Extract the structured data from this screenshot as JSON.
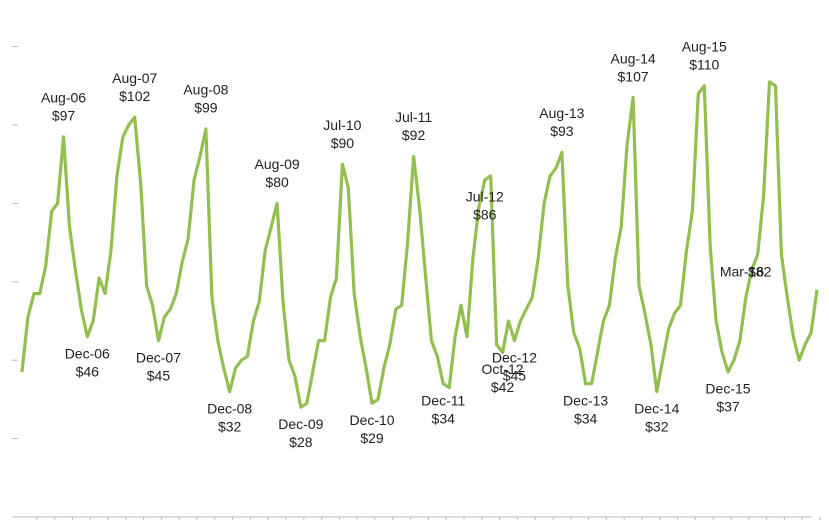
{
  "chart_data": {
    "type": "line",
    "categories": [
      null,
      null,
      null,
      null,
      null,
      null,
      null,
      "Aug-06",
      null,
      null,
      null,
      "Dec-06",
      null,
      null,
      null,
      null,
      null,
      null,
      null,
      "Aug-07",
      null,
      null,
      null,
      "Dec-07",
      null,
      null,
      null,
      null,
      null,
      null,
      null,
      "Aug-08",
      null,
      null,
      null,
      "Dec-08",
      null,
      null,
      null,
      null,
      null,
      null,
      null,
      "Aug-09",
      null,
      null,
      null,
      "Dec-09",
      null,
      null,
      null,
      null,
      null,
      null,
      "Jul-10",
      null,
      null,
      null,
      null,
      "Dec-10",
      null,
      null,
      null,
      null,
      null,
      null,
      "Jul-11",
      null,
      null,
      null,
      null,
      "Dec-11",
      null,
      null,
      null,
      null,
      null,
      null,
      "Jul-12",
      null,
      null,
      "Oct-12",
      null,
      "Dec-12",
      null,
      null,
      null,
      null,
      null,
      null,
      null,
      "Aug-13",
      null,
      null,
      null,
      "Dec-13",
      null,
      null,
      null,
      null,
      null,
      null,
      null,
      "Aug-14",
      null,
      null,
      null,
      "Dec-14",
      null,
      null,
      null,
      null,
      null,
      null,
      null,
      "Aug-15",
      null,
      null,
      null,
      "Dec-15",
      null,
      null,
      null,
      null,
      null,
      null,
      null,
      null,
      null,
      null,
      null,
      null,
      null,
      null,
      null
    ],
    "series": [
      {
        "color": "#92c050",
        "values": [
          37,
          51,
          57,
          57,
          64,
          78,
          80,
          97,
          74,
          63,
          53,
          46,
          50,
          61,
          57,
          68,
          87,
          97,
          100,
          102,
          85,
          59,
          54,
          45,
          51,
          53,
          57,
          65,
          71,
          86,
          92,
          99,
          56,
          45,
          38,
          32,
          38,
          40,
          41,
          50,
          55,
          68,
          74,
          80,
          55,
          40,
          36,
          28,
          29,
          37,
          45,
          45,
          56,
          61,
          90,
          84,
          57,
          46,
          38,
          29,
          30,
          38,
          44,
          53,
          54,
          70,
          92,
          79,
          62,
          45,
          41,
          34,
          33,
          46,
          54,
          46,
          66,
          79,
          86,
          87,
          44,
          42,
          50,
          45,
          50,
          53,
          56,
          66,
          80,
          87,
          89,
          93,
          59,
          47,
          43,
          34,
          34,
          42,
          50,
          54,
          66,
          74,
          95,
          107,
          59,
          52,
          44,
          32,
          40,
          48,
          52,
          54,
          68,
          78,
          108,
          110,
          69,
          50,
          42,
          37,
          40,
          45,
          56,
          63,
          67,
          82,
          111,
          110,
          67,
          56,
          46,
          40,
          44,
          47,
          58
        ],
        "value_labels": [
          null,
          null,
          null,
          null,
          null,
          null,
          null,
          "$97",
          null,
          null,
          null,
          "$46",
          null,
          null,
          null,
          null,
          null,
          null,
          null,
          "$102",
          null,
          null,
          null,
          "$45",
          null,
          null,
          null,
          null,
          null,
          null,
          null,
          "$99",
          null,
          null,
          null,
          "$32",
          null,
          null,
          null,
          null,
          null,
          null,
          null,
          "$80",
          null,
          null,
          null,
          "$28",
          null,
          null,
          null,
          null,
          null,
          null,
          "$90",
          null,
          null,
          null,
          null,
          "$29",
          null,
          null,
          null,
          null,
          null,
          null,
          "$92",
          null,
          null,
          null,
          null,
          "$34",
          null,
          null,
          null,
          null,
          null,
          null,
          "$86",
          null,
          null,
          "$42",
          null,
          "$45",
          null,
          null,
          null,
          null,
          null,
          null,
          null,
          "$93",
          null,
          null,
          null,
          "$34",
          null,
          null,
          null,
          null,
          null,
          null,
          null,
          "$107",
          null,
          null,
          null,
          "$32",
          null,
          null,
          null,
          null,
          null,
          null,
          null,
          "$110",
          null,
          null,
          null,
          "$37",
          null,
          null,
          null,
          null,
          null,
          null,
          null,
          null,
          null,
          null,
          null,
          null,
          null,
          null,
          null
        ]
      }
    ],
    "annotations": [
      "Mar-16",
      "$82"
    ],
    "ylim": [
      0,
      130
    ],
    "yticks": [
      0,
      20,
      40,
      60,
      80,
      100,
      120
    ]
  }
}
